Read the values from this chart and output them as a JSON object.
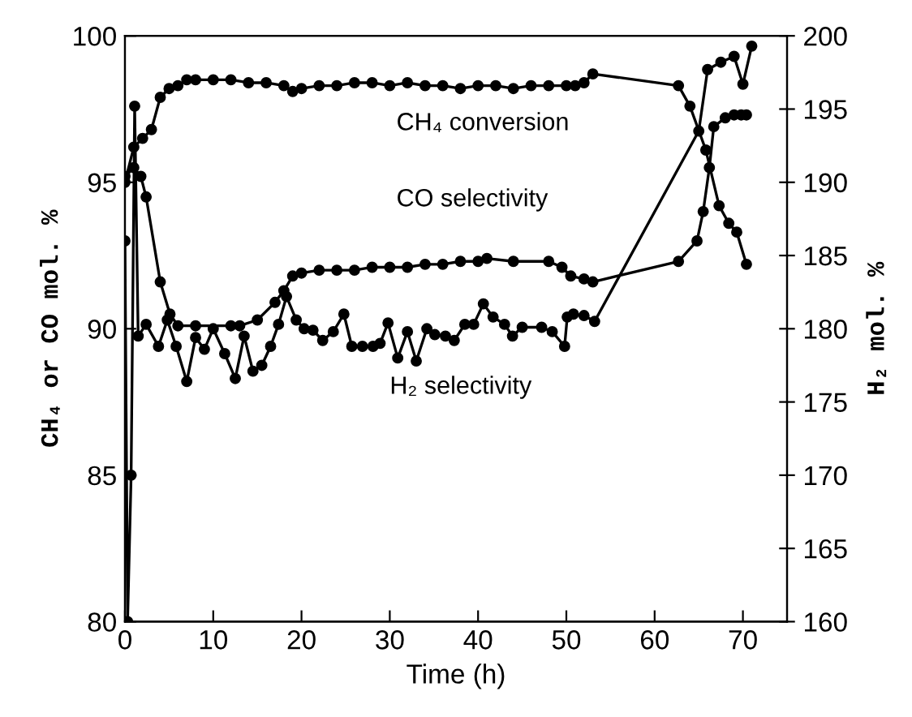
{
  "chart_data": {
    "type": "line",
    "xlabel": "Time (h)",
    "ylabel": "CH₄ or CO mol. %",
    "y2label": "H₂ mol. %",
    "xlim": [
      0,
      75
    ],
    "xticks": [
      0,
      10,
      20,
      30,
      40,
      50,
      60,
      70
    ],
    "ylim": [
      80,
      100
    ],
    "yticks": [
      80,
      85,
      90,
      95,
      100
    ],
    "y2lim": [
      160,
      200
    ],
    "y2ticks": [
      160,
      165,
      170,
      175,
      180,
      185,
      190,
      195,
      200
    ],
    "marker": "circle",
    "line_style": "solid",
    "grid": false,
    "legend": false,
    "annotations": [
      "CH₄ conversion",
      "CO selectivity",
      "H₂ selectivity"
    ],
    "series": [
      {
        "color": "#000000",
        "x": [
          0,
          1,
          2,
          3,
          4,
          5,
          6,
          7,
          8,
          10,
          12,
          14,
          16,
          18,
          19,
          20,
          22,
          24,
          26,
          28,
          30,
          32,
          34,
          36,
          38,
          40,
          42,
          44,
          46,
          48,
          50,
          51,
          52,
          53,
          62.7,
          64,
          65.8,
          67.3,
          68.4,
          69.3,
          70.4
        ],
        "values": [
          95.0,
          96.2,
          96.5,
          96.8,
          97.9,
          98.2,
          98.3,
          98.5,
          98.5,
          98.5,
          98.5,
          98.4,
          98.4,
          98.3,
          98.1,
          98.2,
          98.3,
          98.3,
          98.4,
          98.4,
          98.3,
          98.4,
          98.3,
          98.3,
          98.2,
          98.3,
          98.3,
          98.2,
          98.3,
          98.3,
          98.3,
          98.3,
          98.4,
          98.7,
          98.3,
          97.6,
          96.1,
          94.2,
          93.6,
          93.3,
          92.2
        ]
      },
      {
        "color": "#000000",
        "x": [
          0,
          1,
          1.8,
          2.4,
          4,
          5.1,
          6,
          8,
          12,
          13,
          15,
          17,
          18,
          19,
          20,
          22,
          24,
          26,
          28,
          30,
          32,
          34,
          36,
          38,
          40,
          41,
          44,
          48,
          49.5,
          50.5,
          52,
          53,
          62.7,
          64.8,
          65.5,
          66.2,
          66.7,
          68,
          69,
          69.8,
          70.4
        ],
        "values": [
          95.2,
          95.5,
          95.2,
          94.5,
          91.6,
          90.5,
          90.1,
          90.1,
          90.1,
          90.1,
          90.3,
          90.9,
          91.3,
          91.8,
          91.9,
          92.0,
          92.0,
          92.0,
          92.1,
          92.1,
          92.1,
          92.2,
          92.2,
          92.3,
          92.3,
          92.4,
          92.3,
          92.3,
          92.1,
          91.8,
          91.7,
          91.6,
          92.3,
          93.0,
          94.0,
          95.5,
          96.9,
          97.2,
          97.3,
          97.3,
          97.3
        ]
      },
      {
        "color": "#000000",
        "axis": "y2",
        "x": [
          0,
          0.3,
          0.7,
          1.1,
          1.5,
          2.4,
          3.8,
          4.8,
          5.8,
          7,
          8,
          9,
          10,
          11.3,
          12.5,
          13.5,
          14.5,
          15.5,
          16.5,
          17.4,
          18.3,
          19.4,
          20.3,
          21.3,
          22.4,
          23.6,
          24.8,
          25.7,
          26.9,
          28.1,
          28.9,
          29.8,
          30.9,
          32,
          33,
          34.2,
          35.1,
          36.3,
          37.3,
          38.5,
          39.5,
          40.6,
          41.7,
          43,
          43.9,
          45,
          47.2,
          48.4,
          49.8,
          50.1,
          50.8,
          52,
          53.2,
          65,
          66,
          67.5,
          69,
          70,
          71
        ],
        "values": [
          186,
          160,
          170,
          195.2,
          179.5,
          180.3,
          178.8,
          180.6,
          178.8,
          176.4,
          179.4,
          178.6,
          180.0,
          178.3,
          176.6,
          179.5,
          177.1,
          177.5,
          178.8,
          180.3,
          182.2,
          180.6,
          180.0,
          179.9,
          179.2,
          179.8,
          181.0,
          178.8,
          178.8,
          178.8,
          179.0,
          180.4,
          178.0,
          179.8,
          177.8,
          180.0,
          179.6,
          179.5,
          179.2,
          180.3,
          180.3,
          181.7,
          180.8,
          180.3,
          179.5,
          180.1,
          180.1,
          179.8,
          178.8,
          180.8,
          181.0,
          180.9,
          180.5,
          193.5,
          197.7,
          198.2,
          198.6,
          196.7,
          199.3
        ]
      }
    ]
  }
}
